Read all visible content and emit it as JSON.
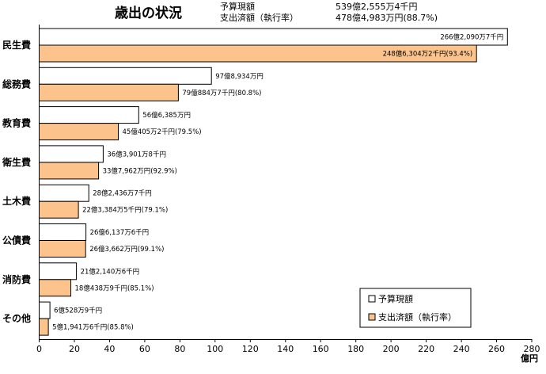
{
  "chart_data": {
    "type": "bar",
    "orientation": "horizontal",
    "title": "歳出の状況",
    "summary": [
      {
        "label": "予算現額",
        "value": "539億2,555万4千円"
      },
      {
        "label": "支出済額（執行率）",
        "value": "478億4,983万円(88.7%)"
      }
    ],
    "categories": [
      "民生費",
      "総務費",
      "教育費",
      "衛生費",
      "土木費",
      "公債費",
      "消防費",
      "その他"
    ],
    "series": [
      {
        "name": "予算現額",
        "color": "#ffffff",
        "values": [
          266.2,
          97.9,
          56.6,
          36.4,
          28.2,
          26.6,
          21.2,
          6.1
        ],
        "labels": [
          "266億2,090万7千円",
          "97億8,934万円",
          "56億6,385万円",
          "36億3,901万8千円",
          "28億2,436万7千円",
          "26億6,137万6千円",
          "21億2,140万6千円",
          "6億528万9千円"
        ]
      },
      {
        "name": "支出済額（執行率）",
        "color": "#fcc48c",
        "values": [
          248.6,
          79.1,
          45.0,
          33.8,
          22.3,
          26.4,
          18.0,
          5.2
        ],
        "labels": [
          "248億6,304万2千円(93.4%)",
          "79億884万7千円(80.8%)",
          "45億405万2千円(79.5%)",
          "33億7,962万円(92.9%)",
          "22億3,384万5千円(79.1%)",
          "26億3,662万円(99.1%)",
          "18億438万9千円(85.1%)",
          "5億1,941万6千円(85.8%)"
        ]
      }
    ],
    "xlim": [
      0,
      280
    ],
    "xticks": [
      0,
      20,
      40,
      60,
      80,
      100,
      120,
      140,
      160,
      180,
      200,
      220,
      240,
      260,
      280
    ],
    "xlabel": "億円",
    "grid": false,
    "legend_position": "bottom-right"
  }
}
